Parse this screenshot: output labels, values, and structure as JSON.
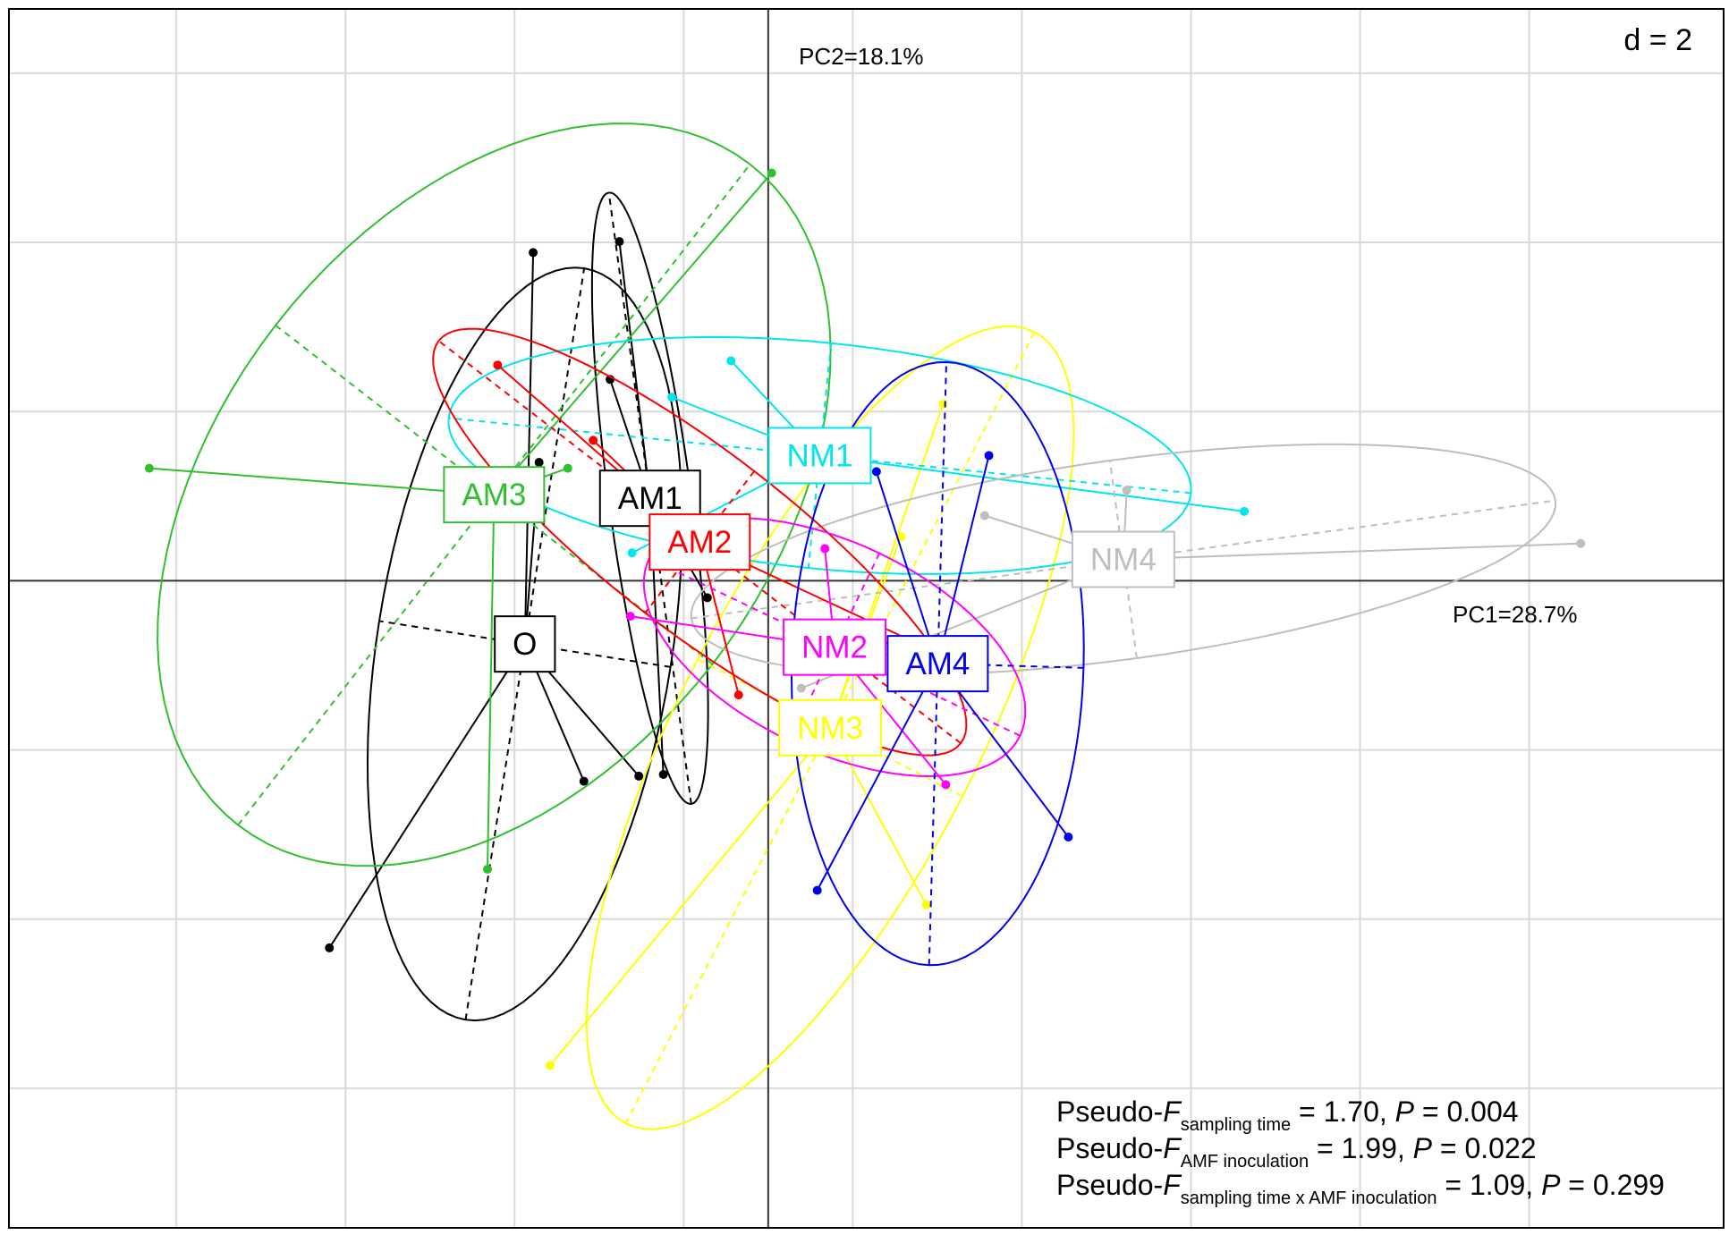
{
  "chart_data": {
    "type": "class-scatter",
    "x_axis_label": "PC1=28.7%",
    "y_axis_label": "PC2=18.1%",
    "grid_label": "d = 2",
    "xlim": [
      -8.98,
      11.3
    ],
    "ylim": [
      -7.65,
      6.76
    ],
    "xticks": [
      -7,
      -5,
      -3,
      -1,
      1,
      3,
      5,
      7,
      9
    ],
    "yticks": [
      -6,
      -4,
      -2,
      2,
      4,
      6
    ],
    "grid": true,
    "series": [
      {
        "name": "O",
        "color": "#000000",
        "x": [
          -5.19,
          -1.53,
          -2.78,
          -2.71,
          -2.18
        ],
        "values": [
          -4.34,
          -2.31,
          3.88,
          1.4,
          -2.37
        ]
      },
      {
        "name": "AM1",
        "color": "#000000",
        "x": [
          -1.76,
          -1.87,
          -0.72,
          -1.24
        ],
        "values": [
          4.01,
          2.38,
          -0.2,
          -2.29
        ]
      },
      {
        "name": "AM3",
        "color": "#2fc02f",
        "x": [
          -7.32,
          0.04,
          -3.32,
          -2.37
        ],
        "values": [
          1.33,
          4.82,
          -3.41,
          1.33
        ]
      },
      {
        "name": "NM3",
        "color": "#ffff00",
        "x": [
          -2.58,
          1.87,
          2.07,
          1.57
        ],
        "values": [
          -5.73,
          -3.83,
          2.09,
          0.52
        ]
      },
      {
        "name": "NM1",
        "color": "#00e5ee",
        "x": [
          -1.14,
          -0.44,
          5.63,
          -1.61
        ],
        "values": [
          2.17,
          2.6,
          0.82,
          0.33
        ]
      },
      {
        "name": "NM4",
        "color": "#bebebe",
        "x": [
          9.61,
          2.56,
          4.24,
          0.39
        ],
        "values": [
          0.44,
          0.77,
          1.07,
          -1.27
        ]
      },
      {
        "name": "AM2",
        "color": "#ff0000",
        "x": [
          -3.2,
          -2.07,
          -0.35,
          2.38
        ],
        "values": [
          2.55,
          1.66,
          -1.35,
          -1.03
        ]
      },
      {
        "name": "NM2",
        "color": "#ff00ff",
        "x": [
          -1.63,
          0.67,
          2.1,
          2.0
        ],
        "values": [
          -0.42,
          0.38,
          -2.41,
          -0.69
        ]
      },
      {
        "name": "AM4",
        "color": "#0000ee",
        "x": [
          0.58,
          2.61,
          3.55,
          1.28
        ],
        "values": [
          -3.66,
          1.48,
          -3.03,
          1.29
        ]
      }
    ],
    "annotations": [
      [
        "Pseudo-",
        "F",
        "sampling time",
        " = 1.70, ",
        "P",
        " = 0.004"
      ],
      [
        "Pseudo-",
        "F",
        "AMF inoculation",
        " = 1.99, ",
        "P",
        " = 0.022"
      ],
      [
        "Pseudo-",
        "F",
        "sampling time x AMF inoculation",
        " = 1.09, ",
        "P",
        " = 0.299"
      ]
    ]
  }
}
